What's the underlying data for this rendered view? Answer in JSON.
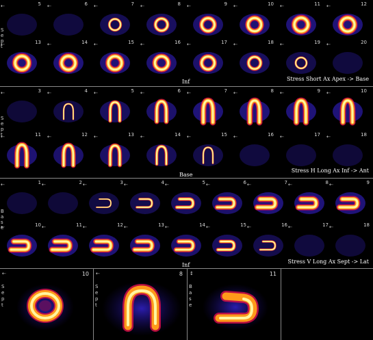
{
  "panel1": {
    "caption": "Stress Short Ax Apex -> Base",
    "bottom_label": "Inf",
    "side_label": [
      "S",
      "e",
      "p",
      "t"
    ],
    "row1": [
      "5",
      "6",
      "7",
      "8",
      "9",
      "10",
      "11",
      "12"
    ],
    "row2": [
      "13",
      "14",
      "15",
      "16",
      "17",
      "18",
      "19",
      "20"
    ]
  },
  "panel2": {
    "caption": "Stress H Long Ax Inf -> Ant",
    "bottom_label": "Base",
    "side_label": [
      "S",
      "e",
      "p",
      "t"
    ],
    "row1": [
      "3",
      "4",
      "5",
      "6",
      "7",
      "8",
      "9",
      "10"
    ],
    "row2": [
      "11",
      "12",
      "13",
      "14",
      "15",
      "16",
      "17",
      "18"
    ]
  },
  "panel3": {
    "caption": "Stress V Long Ax Sept -> Lat",
    "bottom_label": "Inf",
    "side_label": [
      "B",
      "a",
      "s",
      "e"
    ],
    "row1": [
      "1",
      "2",
      "3",
      "4",
      "5",
      "6",
      "7",
      "8",
      "9"
    ],
    "row2": [
      "10",
      "11",
      "12",
      "13",
      "14",
      "15",
      "16",
      "17",
      "18"
    ]
  },
  "bottom": {
    "cells": [
      {
        "num": "10",
        "side": [
          "S",
          "e",
          "p",
          "t"
        ]
      },
      {
        "num": "8",
        "side": [
          "S",
          "e",
          "p",
          "t"
        ]
      },
      {
        "num": "11",
        "side": [
          "B",
          "a",
          "s",
          "e"
        ]
      }
    ]
  },
  "colors": {
    "hot": "#fff6a0",
    "mid": "#ff9a1a",
    "warm": "#e0104a",
    "cold": "#2a1aa0"
  }
}
